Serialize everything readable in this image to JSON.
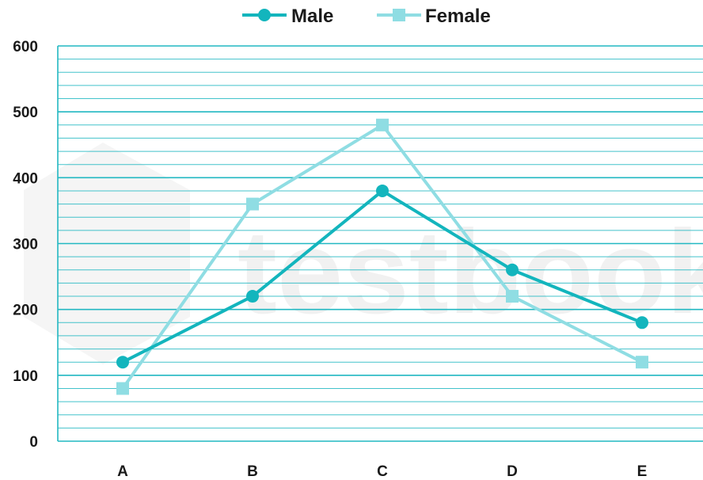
{
  "chart_data": {
    "type": "line",
    "categories": [
      "A",
      "B",
      "C",
      "D",
      "E"
    ],
    "series": [
      {
        "name": "Male",
        "values": [
          120,
          220,
          380,
          260,
          180
        ],
        "color": "#13b5bd",
        "marker": "circle"
      },
      {
        "name": "Female",
        "values": [
          80,
          360,
          480,
          220,
          120
        ],
        "color": "#8fdde3",
        "marker": "square"
      }
    ],
    "ylim": [
      0,
      600
    ],
    "yticks": [
      0,
      100,
      200,
      300,
      400,
      500,
      600
    ],
    "title": "",
    "xlabel": "",
    "ylabel": "",
    "grid": true,
    "legend": "top-center",
    "gridline_color": "#22b8c2",
    "axis_color": "#22b8c2",
    "watermark": "testbook"
  }
}
